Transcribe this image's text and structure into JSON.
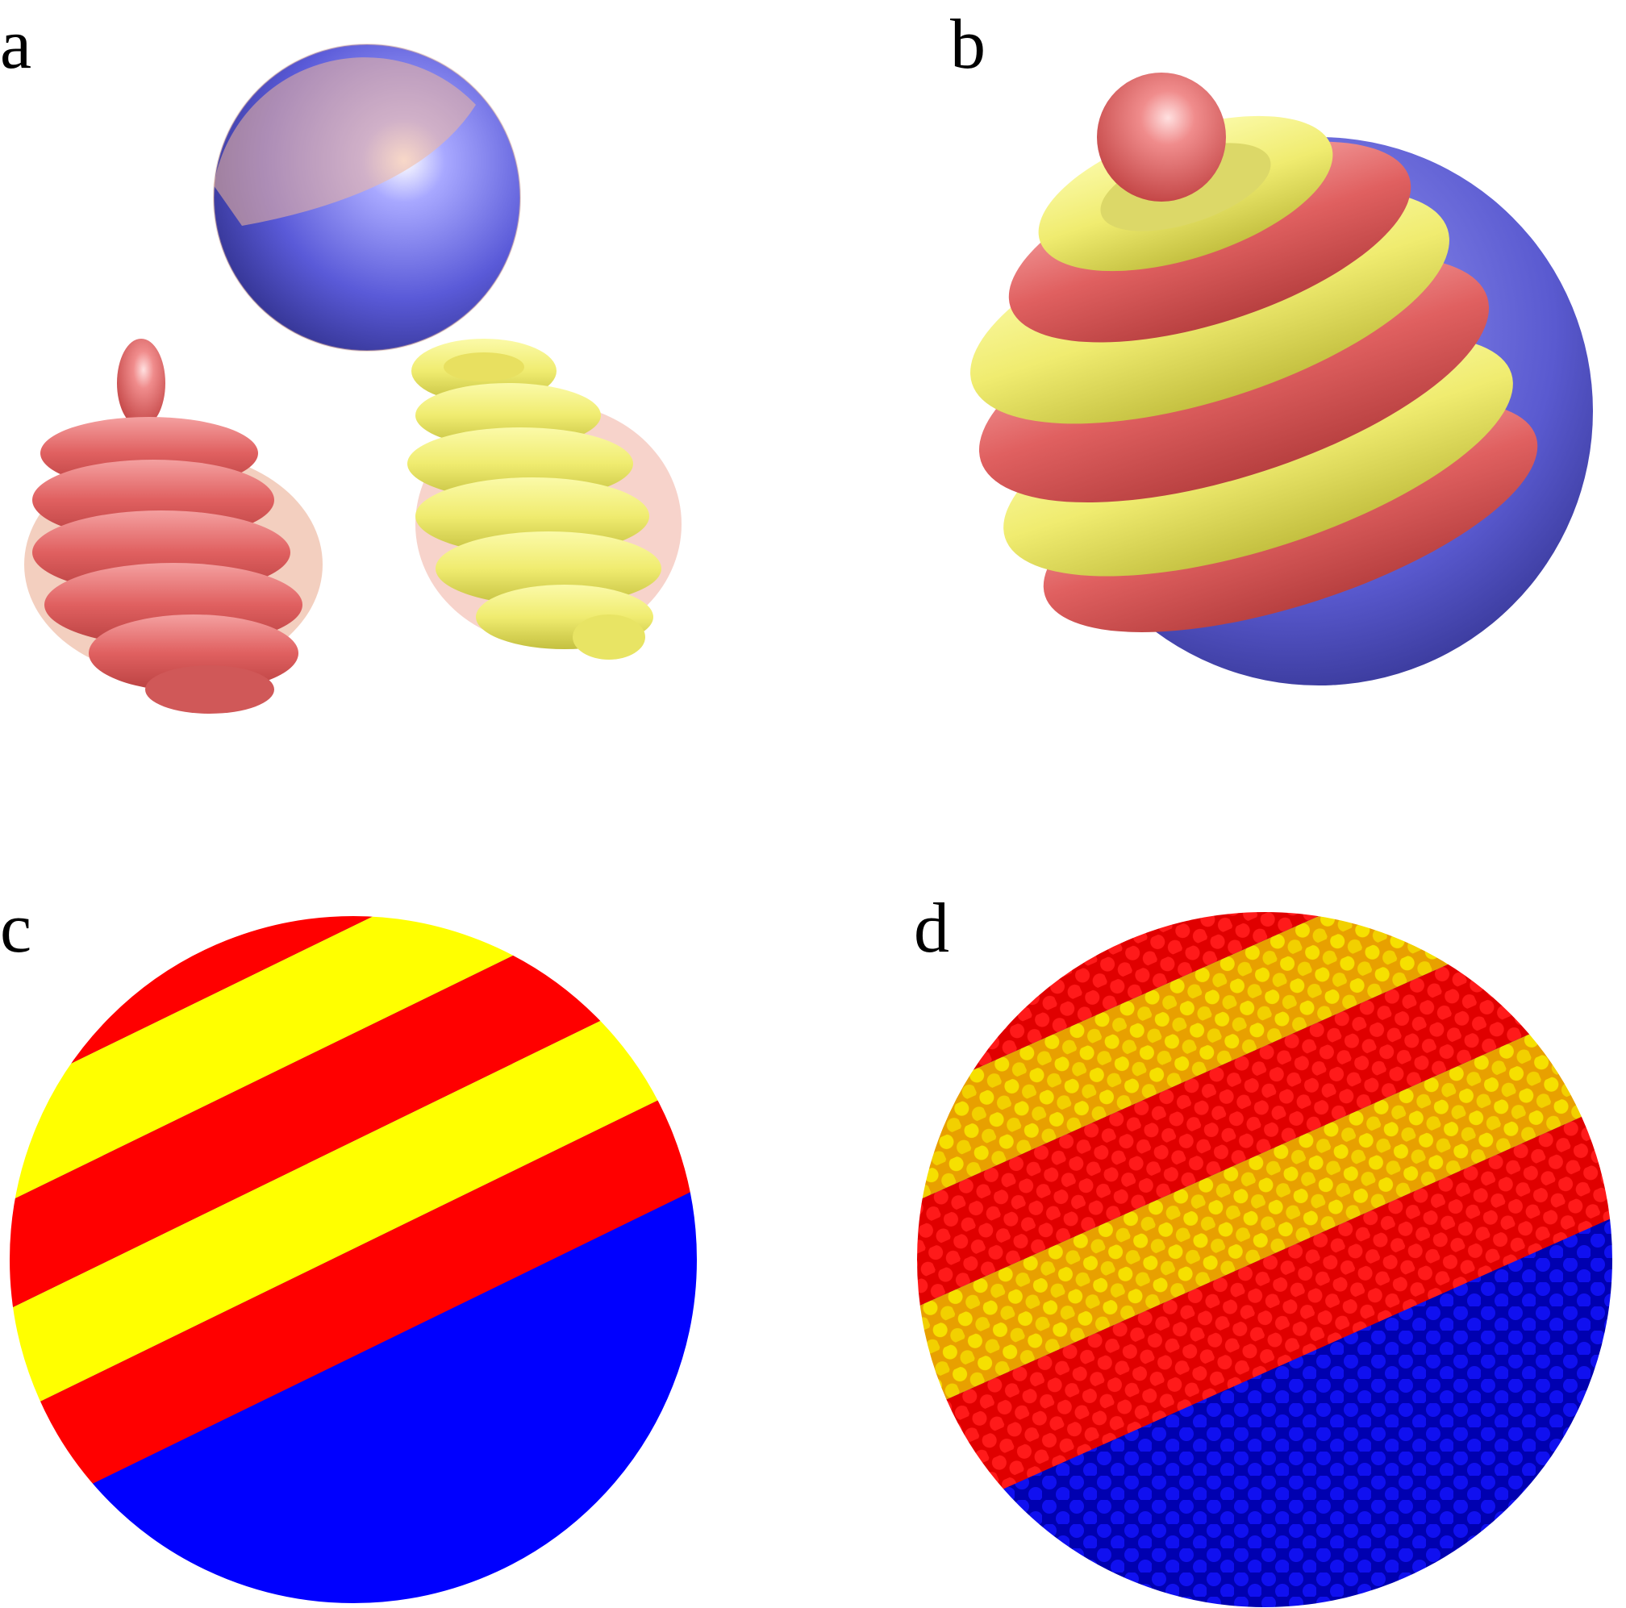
{
  "panels": [
    {
      "label": "a",
      "description_name": "three-component-meshes"
    },
    {
      "label": "b",
      "description_name": "spiral-bands-on-sphere"
    },
    {
      "label": "c",
      "description_name": "continuous-striped-sphere"
    },
    {
      "label": "d",
      "description_name": "cellular-striped-sphere"
    }
  ],
  "colors": {
    "red": "#e05a5a",
    "pink": "#ef8a8a",
    "yellow": "#f4f078",
    "blue": "#5a5ad8",
    "pure_red": "#ff0000",
    "pure_yellow": "#ffff00",
    "pure_blue": "#0000ff"
  }
}
